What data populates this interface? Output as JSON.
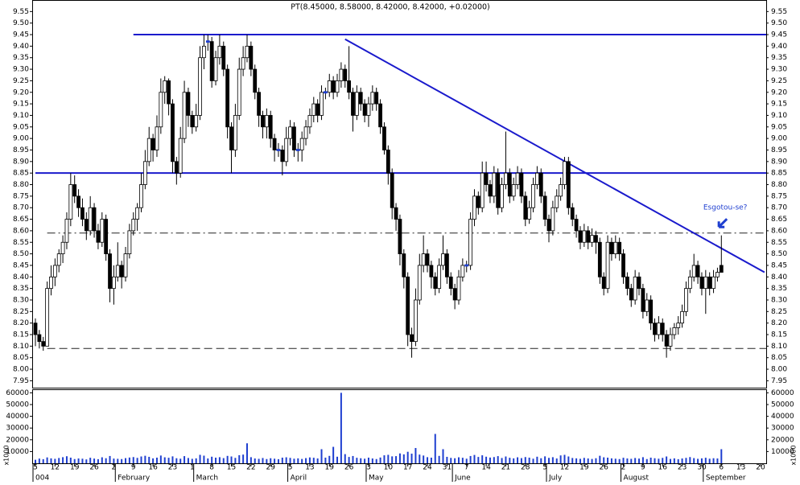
{
  "chart_data": {
    "type": "candlestick",
    "title": "PT(8.45000, 8.58000, 8.42000, 8.42000, +0.02000)",
    "ylim": [
      7.92,
      9.6
    ],
    "yticks": [
      7.95,
      {
        "value": 8,
        "label": "8.00"
      },
      8.05,
      {
        "value": 8.1,
        "label": "8.10"
      },
      8.15,
      {
        "value": 8.2,
        "label": "8.20"
      },
      8.25,
      {
        "value": 8.3,
        "label": "8.30"
      },
      8.35,
      {
        "value": 8.4,
        "label": "8.40"
      },
      8.45,
      {
        "value": 8.5,
        "label": "8.50"
      },
      8.55,
      {
        "value": 8.6,
        "label": "8.60"
      },
      8.65,
      {
        "value": 8.7,
        "label": "8.70"
      },
      8.75,
      {
        "value": 8.8,
        "label": "8.80"
      },
      8.85,
      {
        "value": 8.9,
        "label": "8.90"
      },
      8.95,
      {
        "value": 9,
        "label": "9.00"
      },
      9.05,
      {
        "value": 9.1,
        "label": "9.10"
      },
      9.15,
      {
        "value": 9.2,
        "label": "9.20"
      },
      9.25,
      {
        "value": 9.3,
        "label": "9.30"
      },
      9.35,
      {
        "value": 9.4,
        "label": "9.40"
      },
      9.45,
      {
        "value": 9.5,
        "label": "9.50"
      },
      9.55
    ],
    "y2lim": [
      0,
      63000
    ],
    "y2ticks": [
      10000,
      20000,
      30000,
      40000,
      50000,
      60000
    ],
    "volume_unit": "x1000",
    "up_color": "#ffffff",
    "down_color": "#000000",
    "flat_color": "#1f3fd0",
    "line_color": "#1a1acc",
    "volume_color": "#1f3fd0",
    "categories": [
      "5",
      null,
      null,
      null,
      null,
      "12",
      null,
      null,
      null,
      null,
      "19",
      null,
      null,
      null,
      null,
      "26",
      null,
      null,
      null,
      null,
      "2",
      null,
      null,
      null,
      null,
      "9",
      null,
      null,
      null,
      null,
      "16",
      null,
      null,
      null,
      null,
      "23",
      null,
      null,
      null,
      null,
      "1",
      null,
      null,
      null,
      null,
      "8",
      null,
      null,
      null,
      null,
      "15",
      null,
      null,
      null,
      null,
      "22",
      null,
      null,
      null,
      null,
      "29",
      null,
      null,
      null,
      null,
      "5",
      null,
      null,
      null,
      null,
      "13",
      null,
      null,
      null,
      null,
      "19",
      null,
      null,
      null,
      null,
      "26",
      null,
      null,
      null,
      null,
      "3",
      null,
      null,
      null,
      null,
      "10",
      null,
      null,
      null,
      null,
      "17",
      null,
      null,
      null,
      null,
      "24",
      null,
      null,
      null,
      null,
      "31",
      null,
      null,
      null,
      null,
      "7",
      null,
      null,
      null,
      null,
      "14",
      null,
      null,
      null,
      null,
      "21",
      null,
      null,
      null,
      null,
      "28",
      null,
      null,
      null,
      null,
      "5",
      null,
      null,
      null,
      null,
      "12",
      null,
      null,
      null,
      null,
      "19",
      null,
      null,
      null,
      null,
      "26",
      null,
      null,
      null,
      null,
      "2",
      null,
      null,
      null,
      null,
      "9",
      null,
      null,
      null,
      null,
      "16",
      null,
      null,
      null,
      null,
      "23",
      null,
      null,
      null,
      null,
      "30",
      null,
      null,
      null,
      null,
      "6",
      null,
      null,
      null,
      null,
      "13",
      null,
      null,
      null,
      null,
      "20"
    ],
    "months": [
      {
        "name": "004",
        "at": 0
      },
      {
        "name": "February",
        "at": 21
      },
      {
        "name": "March",
        "at": 41
      },
      {
        "name": "April",
        "at": 65
      },
      {
        "name": "May",
        "at": 85
      },
      {
        "name": "June",
        "at": 107
      },
      {
        "name": "July",
        "at": 131
      },
      {
        "name": "August",
        "at": 150
      },
      {
        "name": "September",
        "at": 171
      }
    ],
    "ohlc": [
      [
        8.2,
        8.22,
        8.1,
        8.15
      ],
      [
        8.15,
        8.17,
        8.09,
        8.12
      ],
      [
        8.12,
        8.14,
        8.08,
        8.1
      ],
      [
        8.1,
        8.38,
        8.1,
        8.35
      ],
      [
        8.35,
        8.45,
        8.32,
        8.4
      ],
      [
        8.4,
        8.48,
        8.36,
        8.45
      ],
      [
        8.45,
        8.52,
        8.42,
        8.5
      ],
      [
        8.5,
        8.58,
        8.46,
        8.55
      ],
      [
        8.55,
        8.68,
        8.52,
        8.65
      ],
      [
        8.65,
        8.85,
        8.62,
        8.8
      ],
      [
        8.8,
        8.84,
        8.72,
        8.75
      ],
      [
        8.75,
        8.78,
        8.66,
        8.7
      ],
      [
        8.7,
        8.74,
        8.62,
        8.65
      ],
      [
        8.65,
        8.68,
        8.56,
        8.6
      ],
      [
        8.6,
        8.75,
        8.58,
        8.7
      ],
      [
        8.7,
        8.72,
        8.57,
        8.6
      ],
      [
        8.6,
        8.63,
        8.52,
        8.55
      ],
      [
        8.55,
        8.68,
        8.53,
        8.65
      ],
      [
        8.65,
        8.67,
        8.47,
        8.5
      ],
      [
        8.5,
        8.52,
        8.29,
        8.35
      ],
      [
        8.35,
        8.45,
        8.28,
        8.4
      ],
      [
        8.4,
        8.55,
        8.38,
        8.45
      ],
      [
        8.45,
        8.47,
        8.35,
        8.4
      ],
      [
        8.4,
        8.53,
        8.38,
        8.5
      ],
      [
        8.5,
        8.63,
        8.48,
        8.6
      ],
      [
        8.6,
        8.68,
        8.58,
        8.65
      ],
      [
        8.65,
        8.72,
        8.6,
        8.7
      ],
      [
        8.7,
        8.85,
        8.68,
        8.8
      ],
      [
        8.8,
        8.95,
        8.78,
        8.9
      ],
      [
        8.9,
        9.05,
        8.88,
        9.0
      ],
      [
        9.0,
        9.02,
        8.9,
        8.95
      ],
      [
        8.95,
        9.1,
        8.92,
        9.05
      ],
      [
        9.05,
        9.26,
        9.02,
        9.2
      ],
      [
        9.2,
        9.27,
        9.15,
        9.25
      ],
      [
        9.25,
        9.26,
        9.1,
        9.15
      ],
      [
        9.15,
        9.17,
        8.85,
        8.9
      ],
      [
        8.9,
        8.92,
        8.8,
        8.85
      ],
      [
        8.85,
        9.05,
        8.83,
        9.0
      ],
      [
        9.0,
        9.25,
        8.98,
        9.2
      ],
      [
        9.2,
        9.22,
        9.05,
        9.1
      ],
      [
        9.1,
        9.12,
        9.02,
        9.05
      ],
      [
        9.05,
        9.15,
        9.03,
        9.1
      ],
      [
        9.1,
        9.4,
        9.08,
        9.35
      ],
      [
        9.35,
        9.45,
        9.3,
        9.4
      ],
      [
        9.42,
        9.45,
        9.38,
        9.42
      ],
      [
        9.42,
        9.44,
        9.22,
        9.25
      ],
      [
        9.25,
        9.38,
        9.23,
        9.35
      ],
      [
        9.35,
        9.45,
        9.32,
        9.4
      ],
      [
        9.4,
        9.42,
        9.27,
        9.3
      ],
      [
        9.3,
        9.32,
        9.0,
        9.05
      ],
      [
        9.05,
        9.07,
        8.85,
        8.95
      ],
      [
        8.95,
        9.15,
        8.92,
        9.1
      ],
      [
        9.1,
        9.35,
        9.08,
        9.3
      ],
      [
        9.3,
        9.4,
        9.27,
        9.35
      ],
      [
        9.35,
        9.45,
        9.33,
        9.4
      ],
      [
        9.4,
        9.42,
        9.27,
        9.3
      ],
      [
        9.3,
        9.32,
        9.17,
        9.2
      ],
      [
        9.2,
        9.22,
        9.05,
        9.1
      ],
      [
        9.1,
        9.12,
        9.0,
        9.05
      ],
      [
        9.05,
        9.13,
        9.0,
        9.1
      ],
      [
        9.1,
        9.12,
        8.96,
        9.0
      ],
      [
        9.0,
        9.02,
        8.9,
        8.95
      ],
      [
        8.95,
        8.98,
        8.92,
        8.95
      ],
      [
        8.95,
        8.97,
        8.84,
        8.9
      ],
      [
        8.9,
        9.05,
        8.88,
        9.0
      ],
      [
        9.0,
        9.08,
        8.97,
        9.05
      ],
      [
        9.05,
        9.07,
        8.92,
        8.95
      ],
      [
        8.95,
        8.98,
        8.9,
        8.95
      ],
      [
        8.95,
        9.03,
        8.9,
        9.0
      ],
      [
        9.0,
        9.08,
        8.97,
        9.05
      ],
      [
        9.05,
        9.13,
        9.02,
        9.1
      ],
      [
        9.1,
        9.18,
        9.07,
        9.15
      ],
      [
        9.15,
        9.17,
        9.07,
        9.1
      ],
      [
        9.1,
        9.23,
        9.08,
        9.2
      ],
      [
        9.2,
        9.22,
        9.17,
        9.2
      ],
      [
        9.2,
        9.28,
        9.18,
        9.25
      ],
      [
        9.25,
        9.27,
        9.17,
        9.2
      ],
      [
        9.2,
        9.28,
        9.18,
        9.25
      ],
      [
        9.25,
        9.33,
        9.22,
        9.3
      ],
      [
        9.3,
        9.32,
        9.22,
        9.25
      ],
      [
        9.25,
        9.4,
        9.17,
        9.2
      ],
      [
        9.2,
        9.22,
        9.03,
        9.1
      ],
      [
        9.1,
        9.23,
        9.08,
        9.2
      ],
      [
        9.2,
        9.22,
        9.12,
        9.15
      ],
      [
        9.15,
        9.17,
        9.07,
        9.1
      ],
      [
        9.1,
        9.18,
        9.05,
        9.15
      ],
      [
        9.15,
        9.23,
        9.12,
        9.2
      ],
      [
        9.2,
        9.22,
        9.12,
        9.15
      ],
      [
        9.15,
        9.17,
        9.02,
        9.05
      ],
      [
        9.05,
        9.07,
        8.93,
        8.95
      ],
      [
        8.95,
        8.97,
        8.8,
        8.85
      ],
      [
        8.85,
        8.87,
        8.65,
        8.7
      ],
      [
        8.7,
        8.72,
        8.6,
        8.65
      ],
      [
        8.65,
        8.67,
        8.45,
        8.5
      ],
      [
        8.5,
        8.52,
        8.35,
        8.4
      ],
      [
        8.4,
        8.42,
        8.1,
        8.15
      ],
      [
        8.15,
        8.18,
        8.05,
        8.12
      ],
      [
        8.12,
        8.35,
        8.1,
        8.3
      ],
      [
        8.3,
        8.5,
        8.28,
        8.45
      ],
      [
        8.45,
        8.58,
        8.42,
        8.5
      ],
      [
        8.5,
        8.52,
        8.42,
        8.45
      ],
      [
        8.45,
        8.47,
        8.35,
        8.4
      ],
      [
        8.4,
        8.42,
        8.32,
        8.35
      ],
      [
        8.35,
        8.48,
        8.33,
        8.45
      ],
      [
        8.45,
        8.58,
        8.43,
        8.5
      ],
      [
        8.5,
        8.52,
        8.37,
        8.4
      ],
      [
        8.4,
        8.42,
        8.32,
        8.35
      ],
      [
        8.35,
        8.37,
        8.26,
        8.3
      ],
      [
        8.3,
        8.43,
        8.28,
        8.4
      ],
      [
        8.4,
        8.48,
        8.38,
        8.45
      ],
      [
        8.45,
        8.47,
        8.42,
        8.45
      ],
      [
        8.45,
        8.68,
        8.43,
        8.65
      ],
      [
        8.65,
        8.78,
        8.62,
        8.75
      ],
      [
        8.75,
        8.77,
        8.67,
        8.7
      ],
      [
        8.7,
        8.9,
        8.68,
        8.85
      ],
      [
        8.85,
        8.9,
        8.77,
        8.8
      ],
      [
        8.8,
        8.82,
        8.72,
        8.75
      ],
      [
        8.75,
        8.88,
        8.72,
        8.85
      ],
      [
        8.85,
        8.87,
        8.67,
        8.7
      ],
      [
        8.7,
        8.83,
        8.68,
        8.8
      ],
      [
        8.8,
        9.03,
        8.78,
        8.85
      ],
      [
        8.85,
        8.87,
        8.72,
        8.75
      ],
      [
        8.75,
        8.83,
        8.73,
        8.8
      ],
      [
        8.8,
        8.88,
        8.78,
        8.85
      ],
      [
        8.85,
        8.87,
        8.72,
        8.75
      ],
      [
        8.75,
        8.77,
        8.62,
        8.65
      ],
      [
        8.65,
        8.73,
        8.63,
        8.7
      ],
      [
        8.7,
        8.83,
        8.68,
        8.8
      ],
      [
        8.8,
        8.88,
        8.78,
        8.85
      ],
      [
        8.85,
        8.87,
        8.72,
        8.75
      ],
      [
        8.75,
        8.77,
        8.62,
        8.65
      ],
      [
        8.65,
        8.67,
        8.55,
        8.6
      ],
      [
        8.6,
        8.73,
        8.58,
        8.7
      ],
      [
        8.7,
        8.78,
        8.68,
        8.75
      ],
      [
        8.75,
        8.83,
        8.73,
        8.8
      ],
      [
        8.8,
        8.92,
        8.78,
        8.9
      ],
      [
        8.9,
        8.92,
        8.67,
        8.7
      ],
      [
        8.7,
        8.72,
        8.62,
        8.65
      ],
      [
        8.65,
        8.67,
        8.57,
        8.6
      ],
      [
        8.6,
        8.62,
        8.52,
        8.55
      ],
      [
        8.55,
        8.63,
        8.53,
        8.6
      ],
      [
        8.6,
        8.62,
        8.52,
        8.55
      ],
      [
        8.55,
        8.61,
        8.53,
        8.58
      ],
      [
        8.58,
        8.6,
        8.5,
        8.55
      ],
      [
        8.55,
        8.57,
        8.37,
        8.4
      ],
      [
        8.4,
        8.42,
        8.32,
        8.35
      ],
      [
        8.35,
        8.58,
        8.33,
        8.55
      ],
      [
        8.55,
        8.57,
        8.47,
        8.5
      ],
      [
        8.5,
        8.58,
        8.48,
        8.55
      ],
      [
        8.55,
        8.57,
        8.47,
        8.5
      ],
      [
        8.5,
        8.52,
        8.37,
        8.4
      ],
      [
        8.4,
        8.42,
        8.32,
        8.35
      ],
      [
        8.35,
        8.37,
        8.27,
        8.3
      ],
      [
        8.3,
        8.43,
        8.28,
        8.4
      ],
      [
        8.4,
        8.42,
        8.32,
        8.35
      ],
      [
        8.35,
        8.37,
        8.22,
        8.25
      ],
      [
        8.25,
        8.33,
        8.23,
        8.3
      ],
      [
        8.3,
        8.32,
        8.17,
        8.2
      ],
      [
        8.2,
        8.22,
        8.12,
        8.15
      ],
      [
        8.15,
        8.23,
        8.13,
        8.2
      ],
      [
        8.2,
        8.22,
        8.12,
        8.15
      ],
      [
        8.15,
        8.17,
        8.05,
        8.1
      ],
      [
        8.1,
        8.18,
        8.08,
        8.15
      ],
      [
        8.15,
        8.2,
        8.13,
        8.18
      ],
      [
        8.18,
        8.23,
        8.15,
        8.2
      ],
      [
        8.2,
        8.28,
        8.18,
        8.25
      ],
      [
        8.25,
        8.38,
        8.23,
        8.35
      ],
      [
        8.35,
        8.43,
        8.33,
        8.4
      ],
      [
        8.4,
        8.5,
        8.38,
        8.45
      ],
      [
        8.45,
        8.47,
        8.37,
        8.4
      ],
      [
        8.4,
        8.42,
        8.32,
        8.35
      ],
      [
        8.35,
        8.43,
        8.24,
        8.4
      ],
      [
        8.4,
        8.42,
        8.32,
        8.35
      ],
      [
        8.35,
        8.43,
        8.33,
        8.4
      ],
      [
        8.4,
        8.44,
        8.38,
        8.42
      ],
      [
        8.45,
        8.58,
        8.42,
        8.42
      ],
      null,
      null,
      null,
      null,
      null,
      null,
      null,
      null,
      null,
      null
    ],
    "volume": [
      3000,
      4000,
      3500,
      5000,
      4200,
      3800,
      4500,
      5200,
      6000,
      4800,
      3600,
      4100,
      3900,
      3300,
      4700,
      4000,
      3500,
      5100,
      4300,
      6200,
      4000,
      3800,
      3600,
      4400,
      4900,
      5300,
      4600,
      5800,
      6400,
      5500,
      4200,
      4800,
      6600,
      5100,
      4700,
      5900,
      4300,
      3900,
      6100,
      4500,
      3800,
      4200,
      7200,
      6500,
      4100,
      5600,
      4800,
      5200,
      4400,
      6300,
      5800,
      4600,
      6900,
      7400,
      17000,
      5200,
      4100,
      3800,
      4500,
      3600,
      4300,
      3900,
      3500,
      4800,
      5100,
      4600,
      3900,
      4200,
      3700,
      4400,
      5000,
      4700,
      4100,
      12000,
      4800,
      6300,
      14000,
      5600,
      60000,
      7800,
      5400,
      6200,
      4700,
      4300,
      3900,
      4800,
      4100,
      3600,
      4900,
      6800,
      7200,
      5900,
      6100,
      8400,
      7600,
      9800,
      8200,
      13000,
      7400,
      6600,
      5200,
      4800,
      25000,
      6300,
      12000,
      5500,
      4600,
      4300,
      5100,
      4700,
      3900,
      6200,
      7100,
      5400,
      6800,
      5600,
      4900,
      5300,
      6100,
      4500,
      5800,
      4700,
      4200,
      5100,
      4400,
      5300,
      4800,
      3900,
      5600,
      4300,
      5900,
      4600,
      5200,
      4100,
      6700,
      7200,
      5800,
      4500,
      4200,
      3800,
      4600,
      4100,
      3700,
      4300,
      6400,
      5100,
      4800,
      4200,
      3900,
      3600,
      4700,
      4100,
      3800,
      4500,
      4000,
      5200,
      3600,
      4800,
      4300,
      3900,
      4600,
      5800,
      3700,
      4200,
      3500,
      4100,
      4600,
      5300,
      4400,
      3800,
      4200,
      4700,
      3900,
      4300,
      4100,
      12000,
      null,
      null,
      null,
      null,
      null,
      null,
      null,
      null,
      null,
      null
    ],
    "levels": [
      {
        "value": 9.45,
        "from": 25,
        "style": "solid"
      },
      {
        "value": 8.85,
        "from": 0,
        "style": "solid"
      },
      {
        "value": 8.59,
        "from": 3,
        "style": "dashdot"
      },
      {
        "value": 8.09,
        "from": 3,
        "style": "dashed"
      }
    ],
    "trendline": {
      "from": [
        79,
        9.43
      ],
      "to": [
        186,
        8.42
      ]
    },
    "annotation": {
      "text": "Esgotou-se?",
      "at": [
        176,
        8.7
      ]
    }
  }
}
